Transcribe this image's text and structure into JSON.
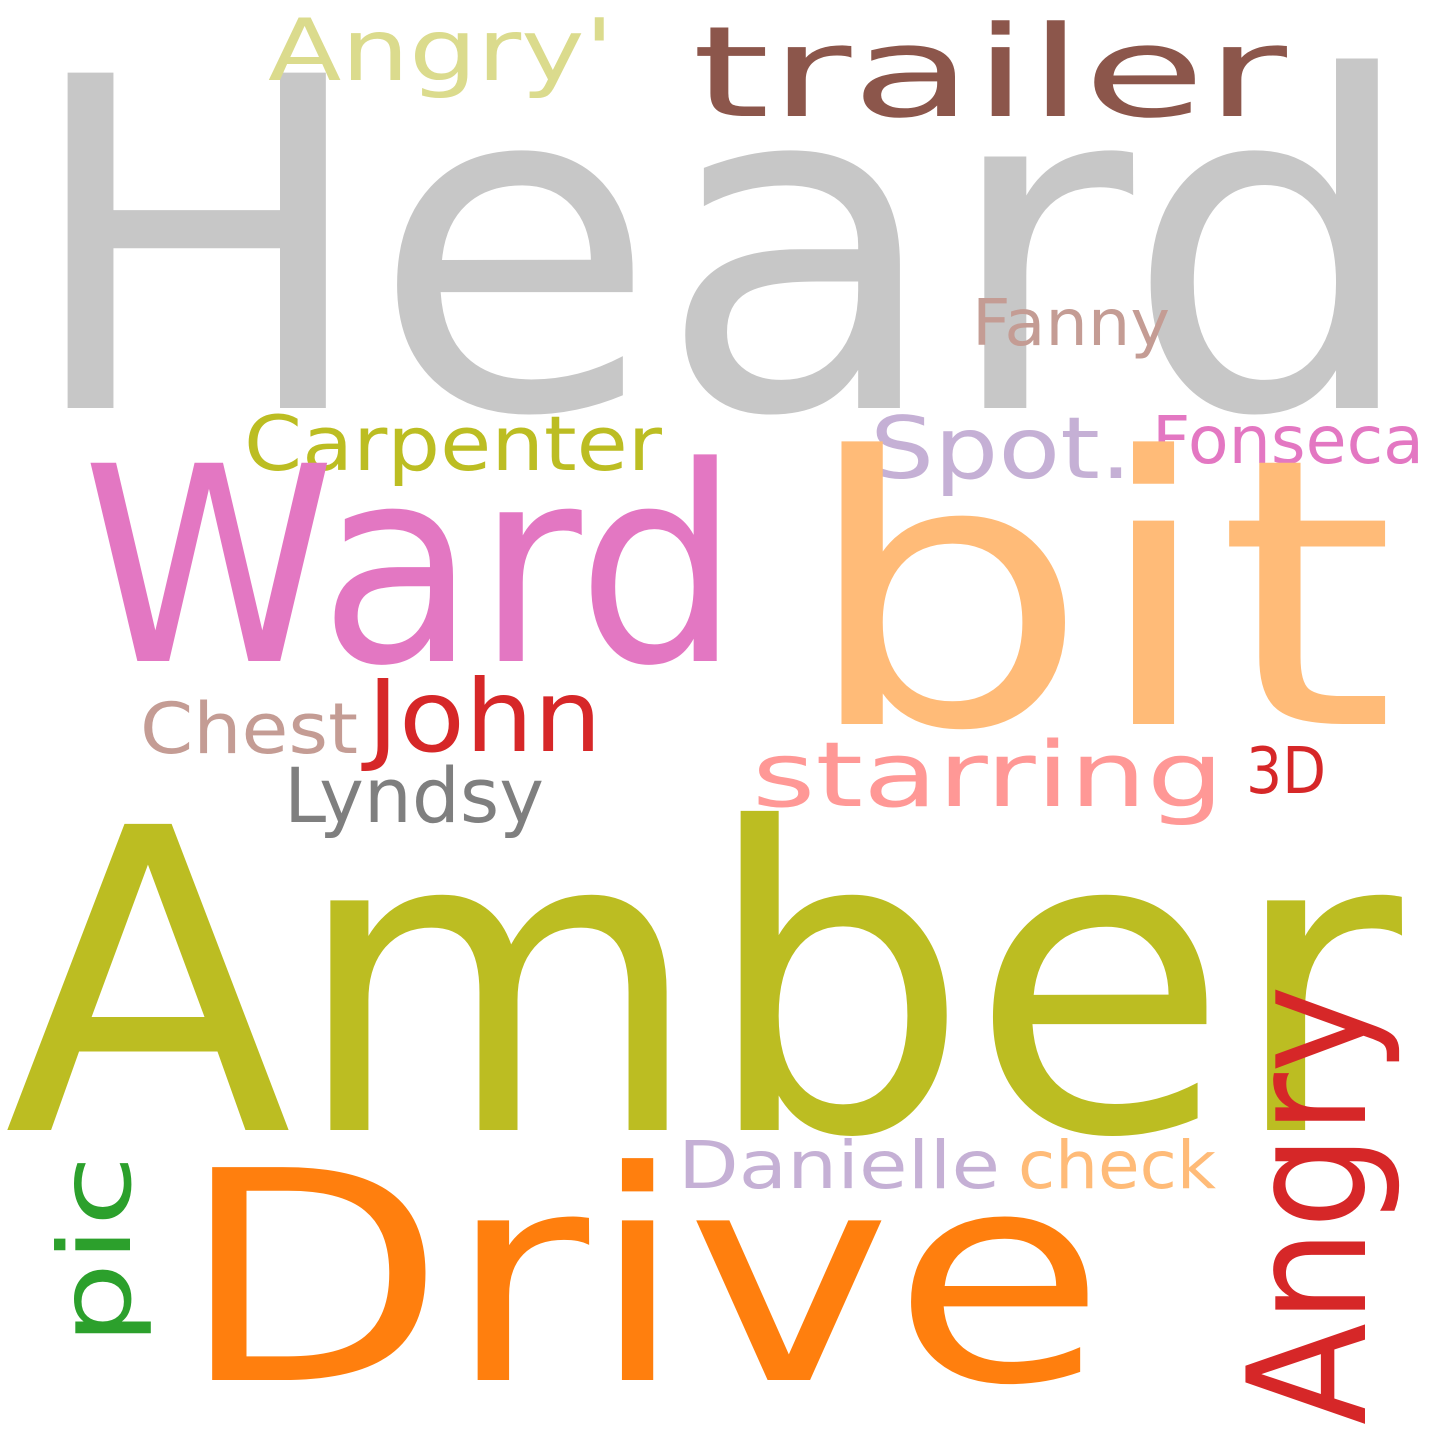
{
  "words": [
    {
      "id": "heard",
      "text": "Heard",
      "color": "#c7c7c7"
    },
    {
      "id": "amber",
      "text": "Amber",
      "color": "#bcbd22"
    },
    {
      "id": "drive",
      "text": "Drive",
      "color": "#ff7f0e"
    },
    {
      "id": "bit",
      "text": "bit",
      "color": "#ffbb78"
    },
    {
      "id": "ward",
      "text": "Ward",
      "color": "#e377c2"
    },
    {
      "id": "trailer",
      "text": "trailer",
      "color": "#8c564b"
    },
    {
      "id": "angry-vertical",
      "text": "Angry",
      "color": "#d62728"
    },
    {
      "id": "angry-quote",
      "text": "Angry'",
      "color": "#dbdb8d"
    },
    {
      "id": "carpenter",
      "text": "Carpenter",
      "color": "#bcbd22"
    },
    {
      "id": "spot",
      "text": "Spot.",
      "color": "#c5b0d5"
    },
    {
      "id": "fonseca",
      "text": "Fonseca",
      "color": "#e377c2"
    },
    {
      "id": "fanny",
      "text": "Fanny",
      "color": "#c49c94"
    },
    {
      "id": "john",
      "text": "John",
      "color": "#d62728"
    },
    {
      "id": "chest",
      "text": "Chest",
      "color": "#c49c94"
    },
    {
      "id": "starring",
      "text": "starring",
      "color": "#ff9896"
    },
    {
      "id": "3d",
      "text": "3D",
      "color": "#d62728"
    },
    {
      "id": "lyndsy",
      "text": "Lyndsy",
      "color": "#7f7f7f"
    },
    {
      "id": "pic",
      "text": "pic",
      "color": "#2ca02c"
    },
    {
      "id": "danielle",
      "text": "Danielle",
      "color": "#c5b0d5"
    },
    {
      "id": "check",
      "text": "check",
      "color": "#ffbb78"
    }
  ]
}
